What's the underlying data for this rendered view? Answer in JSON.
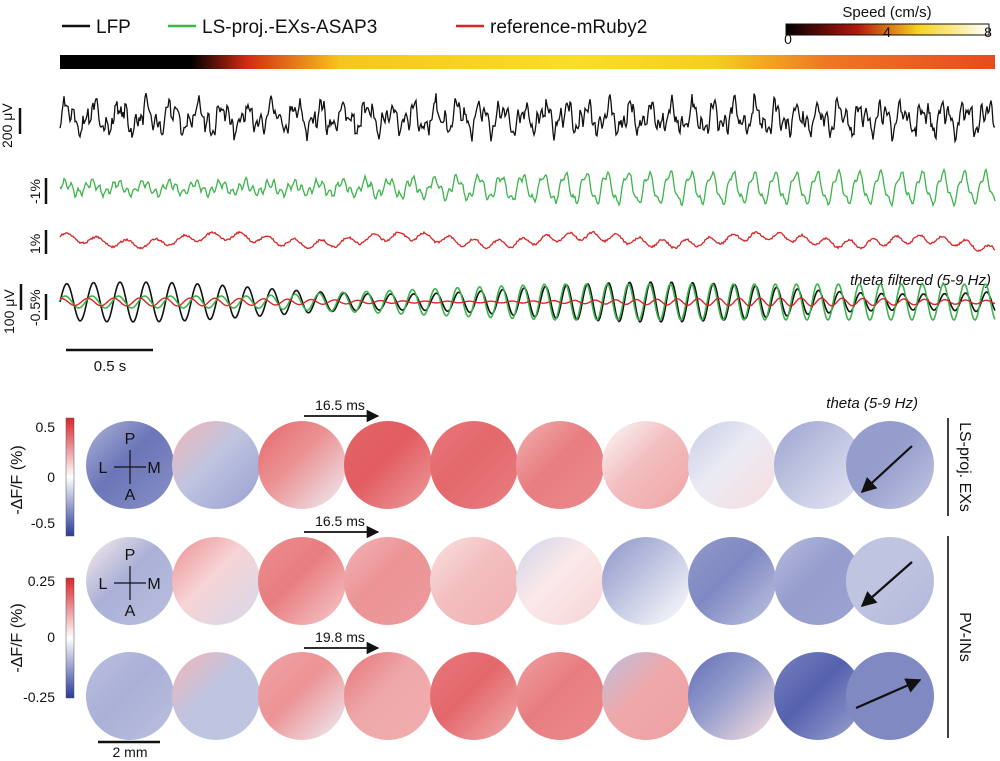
{
  "legend": {
    "items": [
      {
        "label": "LFP",
        "color": "#111111"
      },
      {
        "label": "LS-proj.-EXs-ASAP3",
        "color": "#3cb44b"
      },
      {
        "label": "reference-mRuby2",
        "color": "#d62728"
      }
    ]
  },
  "speed_colorbar": {
    "title": "Speed (cm/s)",
    "ticks": [
      "0",
      "4",
      "8"
    ],
    "range": [
      0,
      8
    ]
  },
  "traces": {
    "scale_lfp": "200 μV",
    "scale_green": "-1%",
    "scale_red": "1%",
    "theta_label": "theta filtered (5-9 Hz)",
    "scale_theta_lfp": "100 μV",
    "scale_theta_pct": "-0.5%",
    "time_scale": "0.5 s"
  },
  "maps": {
    "theta_label": "theta (5-9 Hz)",
    "colorbar_top": {
      "title": "-ΔF/F (%)",
      "ticks": [
        "0.5",
        "0",
        "-0.5"
      ],
      "range": [
        -0.5,
        0.5
      ]
    },
    "colorbar_bottom": {
      "title": "-ΔF/F (%)",
      "ticks": [
        "0.25",
        "0",
        "-0.25"
      ],
      "range": [
        -0.25,
        0.25
      ]
    },
    "row_intervals": [
      "16.5 ms",
      "16.5 ms",
      "19.8 ms"
    ],
    "orientation": {
      "P": "P",
      "L": "L",
      "M": "M",
      "A": "A"
    },
    "group_labels": [
      "LS-proj. EXs",
      "PV-INs"
    ],
    "space_scale": "2 mm",
    "row_values": [
      [
        -0.7,
        -0.3,
        0.5,
        0.75,
        0.7,
        0.6,
        0.3,
        -0.1,
        -0.3,
        -0.5
      ],
      [
        -0.4,
        0.2,
        0.6,
        0.5,
        0.3,
        0.1,
        -0.3,
        -0.6,
        -0.5,
        -0.3
      ],
      [
        -0.4,
        -0.3,
        0.5,
        0.4,
        0.7,
        0.6,
        0.4,
        -0.5,
        -0.8,
        -0.6
      ]
    ],
    "arrow_directions": [
      "down-left",
      "down-left",
      "up-right"
    ]
  },
  "colors": {
    "lfp": "#111111",
    "green": "#3cb44b",
    "red": "#d62728",
    "pos": "#d8262b",
    "neg": "#2b3a9a"
  }
}
